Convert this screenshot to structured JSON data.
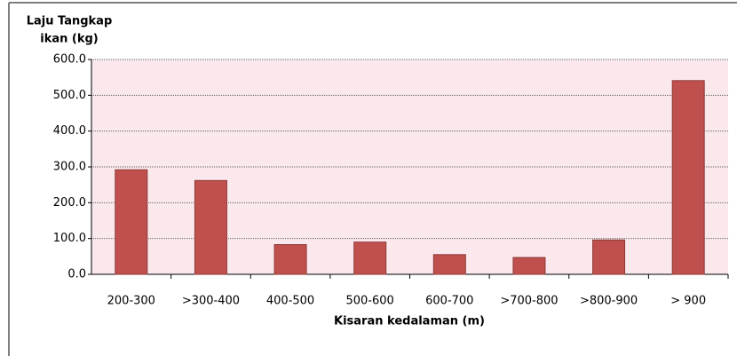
{
  "chart_data": {
    "type": "bar",
    "ylabel": [
      "Laju Tangkap",
      "ikan (kg)"
    ],
    "xlabel": "Kisaran kedalaman (m)",
    "categories": [
      "200-300",
      ">300-400",
      "400-500",
      "500-600",
      "600-700",
      ">700-800",
      ">800-900",
      "> 900"
    ],
    "values": [
      292,
      262,
      83,
      90,
      55,
      47,
      96,
      541
    ],
    "color": "#c0504d",
    "ylim": [
      0,
      600
    ],
    "yticks": [
      {
        "value": 0,
        "label": "0.0"
      },
      {
        "value": 100,
        "label": "100.0"
      },
      {
        "value": 200,
        "label": "200.0"
      },
      {
        "value": 300,
        "label": "300.0"
      },
      {
        "value": 400,
        "label": "400.0"
      },
      {
        "value": 500,
        "label": "500.0"
      },
      {
        "value": 600,
        "label": "600.0"
      }
    ],
    "grid": true
  }
}
